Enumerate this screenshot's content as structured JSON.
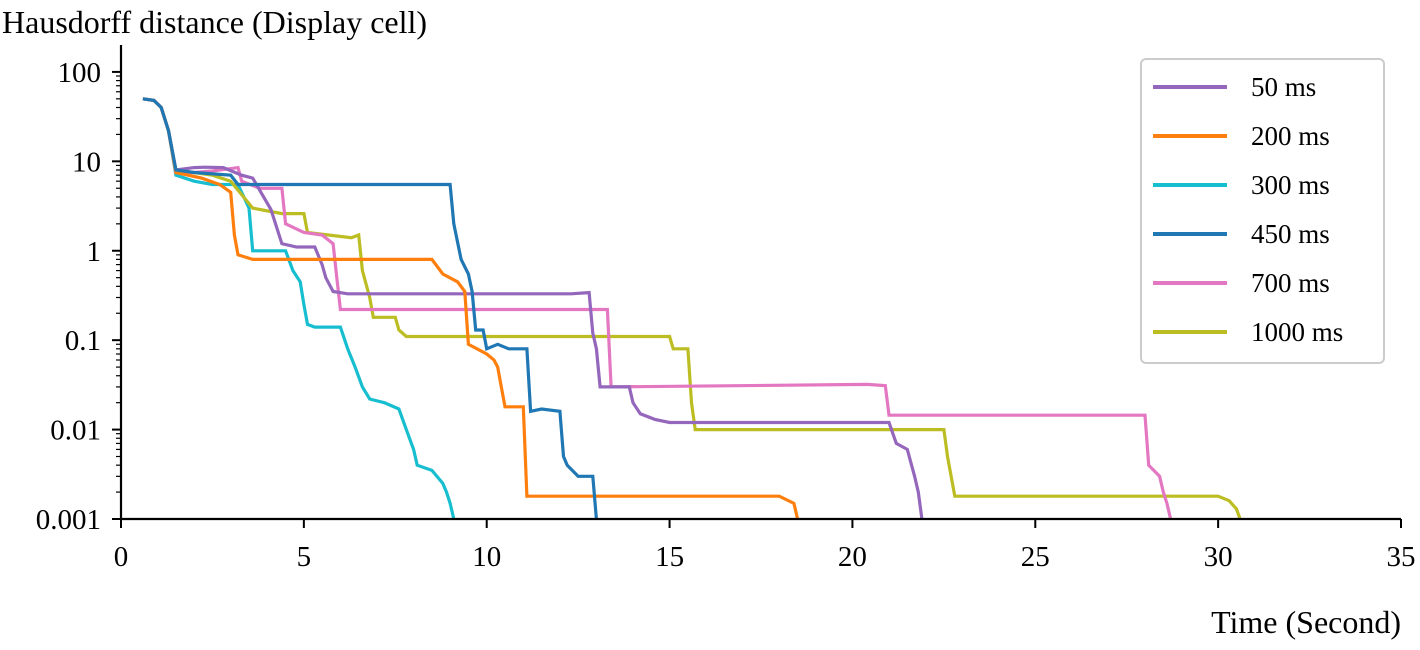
{
  "chart_data": {
    "type": "line",
    "title": "",
    "ylabel": "Hausdorff distance (Display cell)",
    "xlabel": "Time (Second)",
    "xlim": [
      0,
      35
    ],
    "ylim": [
      0.001,
      200
    ],
    "yscale": "log",
    "xticks": [
      0,
      5,
      10,
      15,
      20,
      25,
      30,
      35
    ],
    "xtick_labels": [
      "0",
      "5",
      "10",
      "15",
      "20",
      "25",
      "30",
      "35"
    ],
    "yticks": [
      0.001,
      0.01,
      0.1,
      1,
      10,
      100
    ],
    "ytick_labels": [
      "0.001",
      "0.01",
      "0.1",
      "1",
      "10",
      "100"
    ],
    "grid": false,
    "legend_position": "top-right",
    "series": [
      {
        "name": "50 ms",
        "color": "#9467bd",
        "points": [
          [
            0.6,
            50
          ],
          [
            0.9,
            48
          ],
          [
            1.1,
            40
          ],
          [
            1.3,
            22
          ],
          [
            1.5,
            8
          ],
          [
            2.0,
            8.5
          ],
          [
            2.3,
            8.6
          ],
          [
            2.8,
            8.5
          ],
          [
            3.3,
            7
          ],
          [
            3.6,
            6.5
          ],
          [
            3.9,
            4
          ],
          [
            4.1,
            2.9
          ],
          [
            4.4,
            1.2
          ],
          [
            4.8,
            1.1
          ],
          [
            5.3,
            1.1
          ],
          [
            5.5,
            0.7
          ],
          [
            5.6,
            0.5
          ],
          [
            5.8,
            0.35
          ],
          [
            6.2,
            0.33
          ],
          [
            12.3,
            0.33
          ],
          [
            12.8,
            0.34
          ],
          [
            12.9,
            0.12
          ],
          [
            13.0,
            0.08
          ],
          [
            13.1,
            0.03
          ],
          [
            13.9,
            0.03
          ],
          [
            14.0,
            0.02
          ],
          [
            14.2,
            0.015
          ],
          [
            14.6,
            0.013
          ],
          [
            15.0,
            0.012
          ],
          [
            21.0,
            0.012
          ],
          [
            21.2,
            0.007
          ],
          [
            21.5,
            0.006
          ],
          [
            21.7,
            0.003
          ],
          [
            21.8,
            0.002
          ],
          [
            21.9,
            0.001
          ]
        ]
      },
      {
        "name": "200 ms",
        "color": "#ff7f0e",
        "points": [
          [
            0.6,
            50
          ],
          [
            0.9,
            48
          ],
          [
            1.1,
            40
          ],
          [
            1.3,
            22
          ],
          [
            1.5,
            7.5
          ],
          [
            2.2,
            6.5
          ],
          [
            2.7,
            5.5
          ],
          [
            3.0,
            4.5
          ],
          [
            3.1,
            1.5
          ],
          [
            3.2,
            0.9
          ],
          [
            3.6,
            0.8
          ],
          [
            8.5,
            0.8
          ],
          [
            8.8,
            0.55
          ],
          [
            9.2,
            0.45
          ],
          [
            9.4,
            0.35
          ],
          [
            9.5,
            0.09
          ],
          [
            10.0,
            0.07
          ],
          [
            10.2,
            0.06
          ],
          [
            10.3,
            0.05
          ],
          [
            10.4,
            0.03
          ],
          [
            10.5,
            0.018
          ],
          [
            11.0,
            0.018
          ],
          [
            11.1,
            0.0018
          ],
          [
            18.0,
            0.0018
          ],
          [
            18.4,
            0.0015
          ],
          [
            18.5,
            0.001
          ]
        ]
      },
      {
        "name": "300 ms",
        "color": "#17becf",
        "points": [
          [
            0.6,
            50
          ],
          [
            0.9,
            48
          ],
          [
            1.1,
            40
          ],
          [
            1.3,
            22
          ],
          [
            1.5,
            7
          ],
          [
            2.0,
            6
          ],
          [
            2.5,
            5.5
          ],
          [
            3.2,
            5.5
          ],
          [
            3.5,
            3
          ],
          [
            3.6,
            1.0
          ],
          [
            4.5,
            1.0
          ],
          [
            4.7,
            0.6
          ],
          [
            4.9,
            0.45
          ],
          [
            5.0,
            0.25
          ],
          [
            5.1,
            0.15
          ],
          [
            5.3,
            0.14
          ],
          [
            6.0,
            0.14
          ],
          [
            6.2,
            0.08
          ],
          [
            6.4,
            0.05
          ],
          [
            6.6,
            0.03
          ],
          [
            6.8,
            0.022
          ],
          [
            7.2,
            0.02
          ],
          [
            7.6,
            0.017
          ],
          [
            7.8,
            0.01
          ],
          [
            8.0,
            0.006
          ],
          [
            8.1,
            0.004
          ],
          [
            8.5,
            0.0035
          ],
          [
            8.8,
            0.0025
          ],
          [
            8.9,
            0.002
          ],
          [
            9.0,
            0.0015
          ],
          [
            9.1,
            0.001
          ]
        ]
      },
      {
        "name": "450 ms",
        "color": "#1f77b4",
        "points": [
          [
            0.6,
            50
          ],
          [
            0.9,
            48
          ],
          [
            1.1,
            40
          ],
          [
            1.3,
            22
          ],
          [
            1.5,
            8
          ],
          [
            2.0,
            7.5
          ],
          [
            3.0,
            7
          ],
          [
            3.2,
            5.5
          ],
          [
            9.0,
            5.5
          ],
          [
            9.1,
            2
          ],
          [
            9.3,
            0.8
          ],
          [
            9.5,
            0.55
          ],
          [
            9.6,
            0.35
          ],
          [
            9.7,
            0.13
          ],
          [
            9.9,
            0.13
          ],
          [
            10.0,
            0.08
          ],
          [
            10.3,
            0.09
          ],
          [
            10.6,
            0.08
          ],
          [
            11.1,
            0.08
          ],
          [
            11.2,
            0.016
          ],
          [
            11.5,
            0.017
          ],
          [
            12.0,
            0.016
          ],
          [
            12.1,
            0.005
          ],
          [
            12.2,
            0.004
          ],
          [
            12.5,
            0.003
          ],
          [
            12.9,
            0.003
          ],
          [
            13.0,
            0.001
          ]
        ]
      },
      {
        "name": "700 ms",
        "color": "#e377c2",
        "points": [
          [
            0.6,
            50
          ],
          [
            0.9,
            48
          ],
          [
            1.1,
            40
          ],
          [
            1.3,
            22
          ],
          [
            1.5,
            7.5
          ],
          [
            2.0,
            7.5
          ],
          [
            2.5,
            7.8
          ],
          [
            3.2,
            8.5
          ],
          [
            3.3,
            6
          ],
          [
            3.8,
            5
          ],
          [
            4.4,
            5
          ],
          [
            4.5,
            2
          ],
          [
            5.0,
            1.6
          ],
          [
            5.5,
            1.5
          ],
          [
            5.8,
            1.2
          ],
          [
            5.9,
            0.5
          ],
          [
            6.0,
            0.22
          ],
          [
            13.3,
            0.22
          ],
          [
            13.4,
            0.03
          ],
          [
            20.4,
            0.032
          ],
          [
            20.9,
            0.031
          ],
          [
            21.0,
            0.0145
          ],
          [
            28.0,
            0.0145
          ],
          [
            28.1,
            0.004
          ],
          [
            28.4,
            0.003
          ],
          [
            28.5,
            0.002
          ],
          [
            28.6,
            0.0015
          ],
          [
            28.7,
            0.001
          ]
        ]
      },
      {
        "name": "1000 ms",
        "color": "#bcbd22",
        "points": [
          [
            0.6,
            50
          ],
          [
            0.9,
            48
          ],
          [
            1.1,
            40
          ],
          [
            1.3,
            22
          ],
          [
            1.5,
            8
          ],
          [
            2.5,
            7
          ],
          [
            3.0,
            6
          ],
          [
            3.6,
            3
          ],
          [
            4.4,
            2.6
          ],
          [
            5.0,
            2.6
          ],
          [
            5.1,
            1.6
          ],
          [
            6.3,
            1.4
          ],
          [
            6.5,
            1.5
          ],
          [
            6.6,
            0.6
          ],
          [
            6.8,
            0.3
          ],
          [
            6.9,
            0.18
          ],
          [
            7.5,
            0.18
          ],
          [
            7.6,
            0.13
          ],
          [
            7.8,
            0.11
          ],
          [
            15.0,
            0.11
          ],
          [
            15.1,
            0.08
          ],
          [
            15.5,
            0.08
          ],
          [
            15.6,
            0.02
          ],
          [
            15.7,
            0.01
          ],
          [
            22.5,
            0.01
          ],
          [
            22.6,
            0.005
          ],
          [
            22.8,
            0.0018
          ],
          [
            30.0,
            0.0018
          ],
          [
            30.3,
            0.0016
          ],
          [
            30.5,
            0.0013
          ],
          [
            30.6,
            0.001
          ]
        ]
      }
    ]
  }
}
